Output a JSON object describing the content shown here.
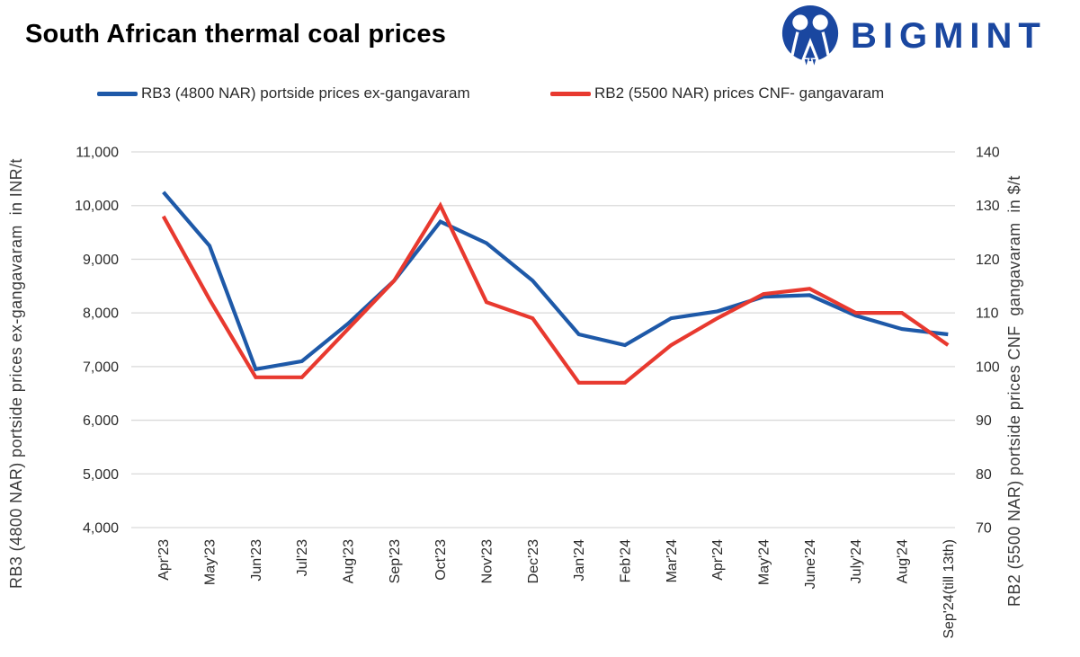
{
  "header": {
    "title": "South African thermal coal prices",
    "brand": {
      "name": "BIGMINT",
      "color": "#1A47A0"
    }
  },
  "legend": [
    {
      "label": "RB3 (4800 NAR) portside prices ex-gangavaram",
      "color": "#1E59A8"
    },
    {
      "label": "RB2 (5500 NAR) prices CNF- gangavaram",
      "color": "#E8392F"
    }
  ],
  "chart_data": {
    "type": "line",
    "title": "South African thermal coal prices",
    "grid": true,
    "legend_position": "top",
    "categories": [
      "Apr'23",
      "May'23",
      "Jun'23",
      "Jul'23",
      "Aug'23",
      "Sep'23",
      "Oct'23",
      "Nov'23",
      "Dec'23",
      "Jan'24",
      "Feb'24",
      "Mar'24",
      "Apr'24",
      "May'24",
      "June'24",
      "July'24",
      "Aug'24",
      "Sep'24(till 13th)"
    ],
    "series": [
      {
        "name": "RB3 (4800 NAR) portside prices ex-gangavaram",
        "axis": "left",
        "unit": "INR/t",
        "color": "#1E59A8",
        "values": [
          10250,
          9250,
          6950,
          7100,
          7800,
          8600,
          9700,
          9300,
          8600,
          7600,
          7400,
          7900,
          8030,
          8300,
          8330,
          7950,
          7700,
          7600
        ]
      },
      {
        "name": "RB2 (5500 NAR) prices CNF- gangavaram",
        "axis": "right",
        "unit": "$/t",
        "color": "#E8392F",
        "values": [
          128,
          112.5,
          98,
          98,
          107,
          116,
          130,
          112,
          109,
          97,
          97,
          104,
          109,
          113.5,
          114.5,
          110,
          110,
          104
        ]
      }
    ],
    "left_axis": {
      "label": "RB3 (4800 NAR) portside prices ex-gangavaram  in INR/t",
      "min": 4000,
      "max": 11000,
      "step": 1000,
      "ticks": [
        "11,000",
        "10,000",
        "9,000",
        "8,000",
        "7,000",
        "6,000",
        "5,000",
        "4,000"
      ]
    },
    "right_axis": {
      "label": "RB2 (5500 NAR) portside prices CNF  gangavaram  in $/t",
      "min": 70,
      "max": 140,
      "step": 10,
      "ticks": [
        "140",
        "130",
        "120",
        "110",
        "100",
        "90",
        "80",
        "70"
      ]
    },
    "gridline_color": "#D9D9D9",
    "tick_text_color": "#2b2b2b"
  }
}
